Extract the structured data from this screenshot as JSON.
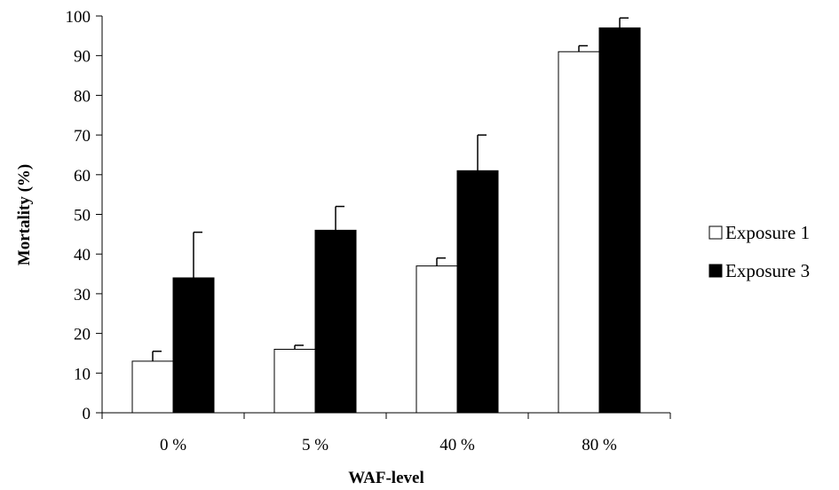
{
  "chart_data": {
    "type": "bar",
    "categories": [
      "0 %",
      "5 %",
      "40 %",
      "80 %"
    ],
    "series": [
      {
        "name": "Exposure 1",
        "values": [
          13,
          16,
          37,
          91
        ],
        "errors": [
          2.5,
          1,
          2,
          1.5
        ],
        "color": "#ffffff"
      },
      {
        "name": "Exposure 3",
        "values": [
          34,
          46,
          61,
          97
        ],
        "errors": [
          11.5,
          6,
          9,
          2.5
        ],
        "color": "#000000"
      }
    ],
    "ylim": [
      0,
      100
    ],
    "yticks": [
      0,
      10,
      20,
      30,
      40,
      50,
      60,
      70,
      80,
      90,
      100
    ],
    "xlabel": "WAF-level",
    "ylabel": "Mortality (%)",
    "legend_position": "right",
    "grid": false
  }
}
